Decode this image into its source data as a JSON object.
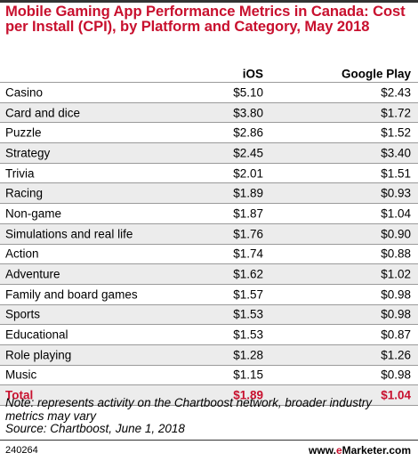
{
  "title": "Mobile Gaming App Performance Metrics in Canada: Cost per Install (CPI), by Platform and Category, May 2018",
  "columns": [
    "iOS",
    "Google Play"
  ],
  "rows": [
    {
      "label": "Casino",
      "ios": "$5.10",
      "google_play": "$2.43"
    },
    {
      "label": "Card and dice",
      "ios": "$3.80",
      "google_play": "$1.72"
    },
    {
      "label": "Puzzle",
      "ios": "$2.86",
      "google_play": "$1.52"
    },
    {
      "label": "Strategy",
      "ios": "$2.45",
      "google_play": "$3.40"
    },
    {
      "label": "Trivia",
      "ios": "$2.01",
      "google_play": "$1.51"
    },
    {
      "label": "Racing",
      "ios": "$1.89",
      "google_play": "$0.93"
    },
    {
      "label": "Non-game",
      "ios": "$1.87",
      "google_play": "$1.04"
    },
    {
      "label": "Simulations and real life",
      "ios": "$1.76",
      "google_play": "$0.90"
    },
    {
      "label": "Action",
      "ios": "$1.74",
      "google_play": "$0.88"
    },
    {
      "label": "Adventure",
      "ios": "$1.62",
      "google_play": "$1.02"
    },
    {
      "label": "Family and board games",
      "ios": "$1.57",
      "google_play": "$0.98"
    },
    {
      "label": "Sports",
      "ios": "$1.53",
      "google_play": "$0.98"
    },
    {
      "label": "Educational",
      "ios": "$1.53",
      "google_play": "$0.87"
    },
    {
      "label": "Role playing",
      "ios": "$1.28",
      "google_play": "$1.26"
    },
    {
      "label": "Music",
      "ios": "$1.15",
      "google_play": "$0.98"
    }
  ],
  "total": {
    "label": "Total",
    "ios": "$1.89",
    "google_play": "$1.04"
  },
  "note": "Note: represents activity on the Chartboost network, broader industry metrics may vary",
  "source": "Source: Chartboost, June 1, 2018",
  "footer": {
    "id": "240264",
    "brand_prefix": "www.",
    "brand_e": "e",
    "brand_rest": "Marketer.com"
  },
  "colors": {
    "accent": "#c8102e",
    "shade": "#ececec"
  },
  "chart_data": {
    "type": "table",
    "title": "Mobile Gaming App Performance Metrics in Canada: Cost per Install (CPI), by Platform and Category, May 2018",
    "columns": [
      "",
      "iOS",
      "Google Play"
    ],
    "rows": [
      [
        "Casino",
        5.1,
        2.43
      ],
      [
        "Card and dice",
        3.8,
        1.72
      ],
      [
        "Puzzle",
        2.86,
        1.52
      ],
      [
        "Strategy",
        2.45,
        3.4
      ],
      [
        "Trivia",
        2.01,
        1.51
      ],
      [
        "Racing",
        1.89,
        0.93
      ],
      [
        "Non-game",
        1.87,
        1.04
      ],
      [
        "Simulations and real life",
        1.76,
        0.9
      ],
      [
        "Action",
        1.74,
        0.88
      ],
      [
        "Adventure",
        1.62,
        1.02
      ],
      [
        "Family and board games",
        1.57,
        0.98
      ],
      [
        "Sports",
        1.53,
        0.98
      ],
      [
        "Educational",
        1.53,
        0.87
      ],
      [
        "Role playing",
        1.28,
        1.26
      ],
      [
        "Music",
        1.15,
        0.98
      ],
      [
        "Total",
        1.89,
        1.04
      ]
    ]
  }
}
